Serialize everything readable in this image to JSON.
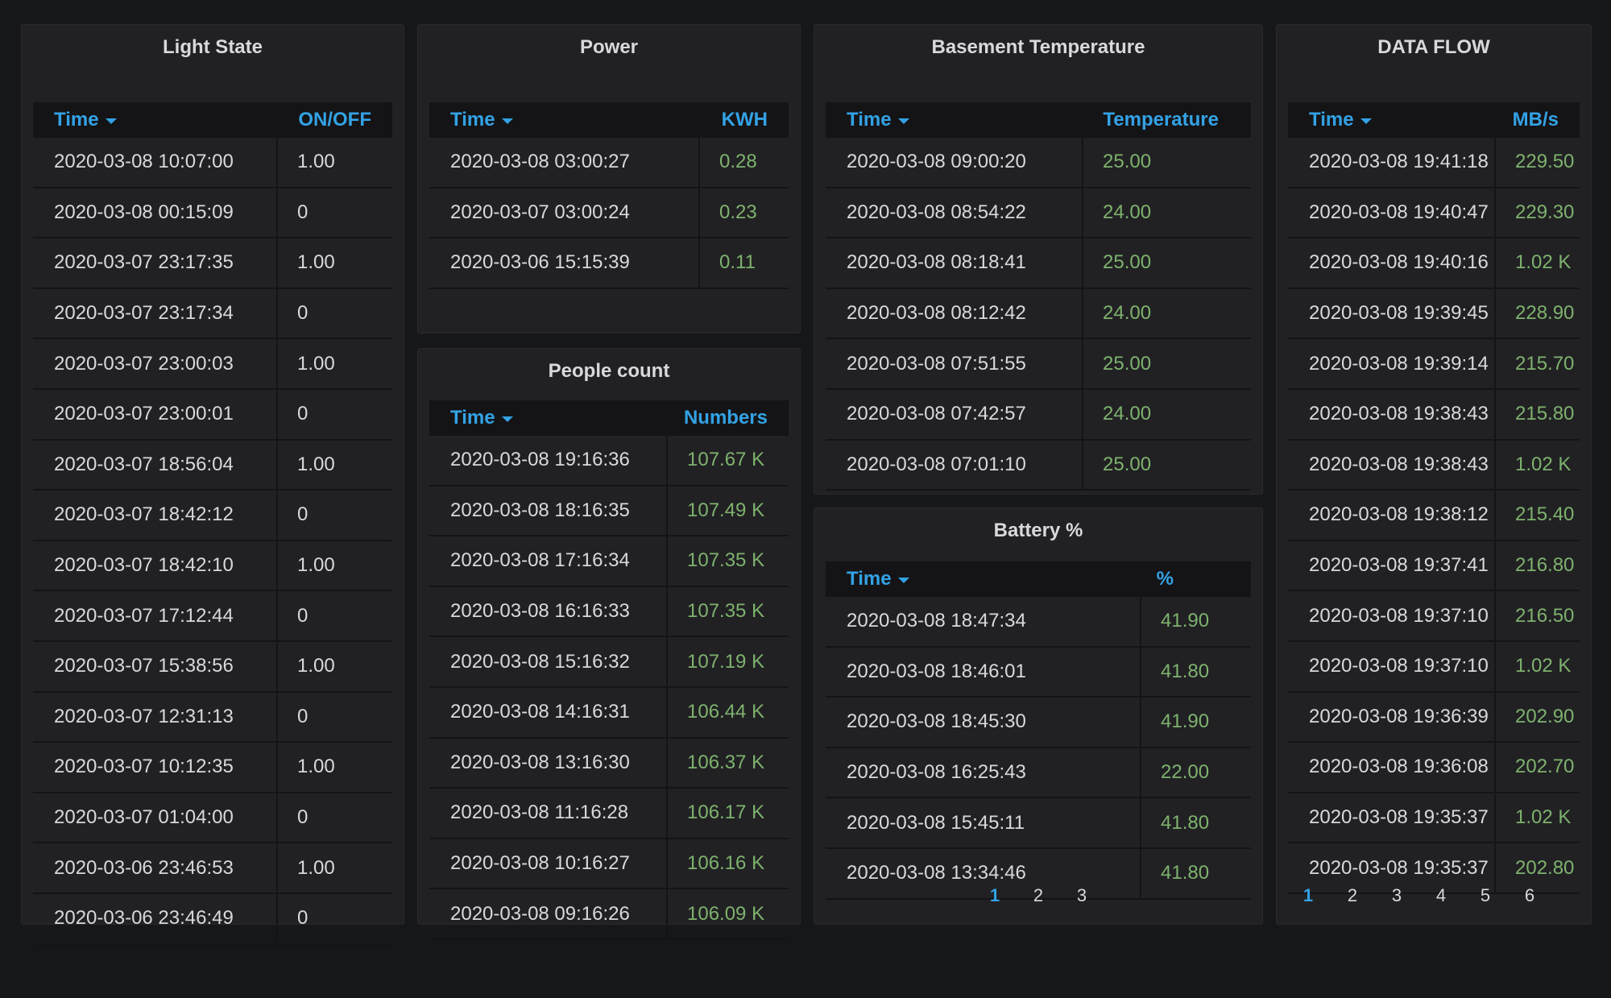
{
  "light_state": {
    "title": "Light State",
    "col_time": "Time",
    "col_value": "ON/OFF",
    "rows": [
      [
        "2020-03-08 10:07:00",
        "1.00"
      ],
      [
        "2020-03-08 00:15:09",
        "0"
      ],
      [
        "2020-03-07 23:17:35",
        "1.00"
      ],
      [
        "2020-03-07 23:17:34",
        "0"
      ],
      [
        "2020-03-07 23:00:03",
        "1.00"
      ],
      [
        "2020-03-07 23:00:01",
        "0"
      ],
      [
        "2020-03-07 18:56:04",
        "1.00"
      ],
      [
        "2020-03-07 18:42:12",
        "0"
      ],
      [
        "2020-03-07 18:42:10",
        "1.00"
      ],
      [
        "2020-03-07 17:12:44",
        "0"
      ],
      [
        "2020-03-07 15:38:56",
        "1.00"
      ],
      [
        "2020-03-07 12:31:13",
        "0"
      ],
      [
        "2020-03-07 10:12:35",
        "1.00"
      ],
      [
        "2020-03-07 01:04:00",
        "0"
      ],
      [
        "2020-03-06 23:46:53",
        "1.00"
      ],
      [
        "2020-03-06 23:46:49",
        "0"
      ]
    ]
  },
  "power": {
    "title": "Power",
    "col_time": "Time",
    "col_value": "KWH",
    "rows": [
      [
        "2020-03-08 03:00:27",
        "0.28"
      ],
      [
        "2020-03-07 03:00:24",
        "0.23"
      ],
      [
        "2020-03-06 15:15:39",
        "0.11"
      ]
    ]
  },
  "people_count": {
    "title": "People count",
    "col_time": "Time",
    "col_value": "Numbers",
    "rows": [
      [
        "2020-03-08 19:16:36",
        "107.67 K"
      ],
      [
        "2020-03-08 18:16:35",
        "107.49 K"
      ],
      [
        "2020-03-08 17:16:34",
        "107.35 K"
      ],
      [
        "2020-03-08 16:16:33",
        "107.35 K"
      ],
      [
        "2020-03-08 15:16:32",
        "107.19 K"
      ],
      [
        "2020-03-08 14:16:31",
        "106.44 K"
      ],
      [
        "2020-03-08 13:16:30",
        "106.37 K"
      ],
      [
        "2020-03-08 11:16:28",
        "106.17 K"
      ],
      [
        "2020-03-08 10:16:27",
        "106.16 K"
      ],
      [
        "2020-03-08 09:16:26",
        "106.09 K"
      ]
    ]
  },
  "basement_temperature": {
    "title": "Basement Temperature",
    "col_time": "Time",
    "col_value": "Temperature",
    "rows": [
      [
        "2020-03-08 09:00:20",
        "25.00"
      ],
      [
        "2020-03-08 08:54:22",
        "24.00"
      ],
      [
        "2020-03-08 08:18:41",
        "25.00"
      ],
      [
        "2020-03-08 08:12:42",
        "24.00"
      ],
      [
        "2020-03-08 07:51:55",
        "25.00"
      ],
      [
        "2020-03-08 07:42:57",
        "24.00"
      ],
      [
        "2020-03-08 07:01:10",
        "25.00"
      ]
    ]
  },
  "battery": {
    "title": "Battery %",
    "col_time": "Time",
    "col_value": "%",
    "rows": [
      [
        "2020-03-08 18:47:34",
        "41.90"
      ],
      [
        "2020-03-08 18:46:01",
        "41.80"
      ],
      [
        "2020-03-08 18:45:30",
        "41.90"
      ],
      [
        "2020-03-08 16:25:43",
        "22.00"
      ],
      [
        "2020-03-08 15:45:11",
        "41.80"
      ],
      [
        "2020-03-08 13:34:46",
        "41.80"
      ]
    ],
    "pages": [
      "1",
      "2",
      "3"
    ],
    "active_page": "1"
  },
  "data_flow": {
    "title": "DATA FLOW",
    "col_time": "Time",
    "col_value": "MB/s",
    "rows": [
      [
        "2020-03-08 19:41:18",
        "229.50"
      ],
      [
        "2020-03-08 19:40:47",
        "229.30"
      ],
      [
        "2020-03-08 19:40:16",
        "1.02 K"
      ],
      [
        "2020-03-08 19:39:45",
        "228.90"
      ],
      [
        "2020-03-08 19:39:14",
        "215.70"
      ],
      [
        "2020-03-08 19:38:43",
        "215.80"
      ],
      [
        "2020-03-08 19:38:43",
        "1.02 K"
      ],
      [
        "2020-03-08 19:38:12",
        "215.40"
      ],
      [
        "2020-03-08 19:37:41",
        "216.80"
      ],
      [
        "2020-03-08 19:37:10",
        "216.50"
      ],
      [
        "2020-03-08 19:37:10",
        "1.02 K"
      ],
      [
        "2020-03-08 19:36:39",
        "202.90"
      ],
      [
        "2020-03-08 19:36:08",
        "202.70"
      ],
      [
        "2020-03-08 19:35:37",
        "1.02 K"
      ],
      [
        "2020-03-08 19:35:37",
        "202.80"
      ]
    ],
    "pages": [
      "1",
      "2",
      "3",
      "4",
      "5",
      "6"
    ],
    "active_page": "1"
  },
  "colors": {
    "background": "#161719",
    "panel": "#212124",
    "header_text": "#33a2e5",
    "value_green": "#7eb26d",
    "text": "#d8d9da"
  }
}
